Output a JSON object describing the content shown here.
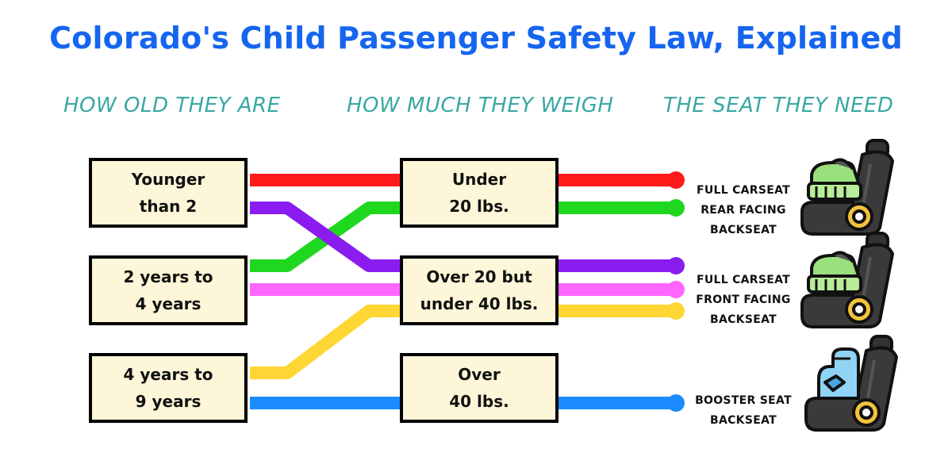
{
  "title": "Colorado's Child Passenger Safety Law, Explained",
  "columns": {
    "age": "HOW OLD THEY ARE",
    "weight": "HOW MUCH THEY WEIGH",
    "seat": "THE SEAT THEY NEED"
  },
  "age_boxes": [
    {
      "line1": "Younger",
      "line2": "than 2"
    },
    {
      "line1": "2 years to",
      "line2": "4 years"
    },
    {
      "line1": "4 years to",
      "line2": "9 years"
    }
  ],
  "weight_boxes": [
    {
      "line1": "Under",
      "line2": "20 lbs."
    },
    {
      "line1": "Over 20 but",
      "line2": "under 40 lbs."
    },
    {
      "line1": "Over",
      "line2": "40 lbs."
    }
  ],
  "seats": [
    {
      "line1": "FULL CARSEAT",
      "line2": "REAR FACING",
      "line3": "BACKSEAT",
      "icon": "rear-facing-carseat-icon"
    },
    {
      "line1": "FULL CARSEAT",
      "line2": "FRONT FACING",
      "line3": "BACKSEAT",
      "icon": "front-facing-carseat-icon"
    },
    {
      "line1": "BOOSTER SEAT",
      "line2": "BACKSEAT",
      "icon": "booster-seat-icon"
    }
  ],
  "line_colors": {
    "red": "#ff1a1a",
    "green": "#1fd71f",
    "purple": "#8a1cf0",
    "pink": "#ff66ff",
    "yellow": "#ffd633",
    "blue": "#1a8cff"
  },
  "title_color": "#1565f0",
  "heading_color": "#3aa8a3",
  "box_fill": "#fdf6d8"
}
